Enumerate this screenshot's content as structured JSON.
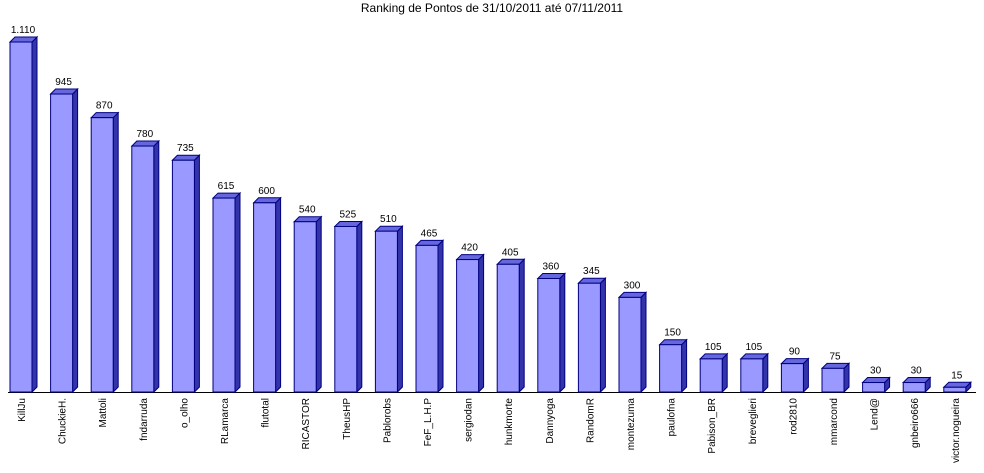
{
  "chart_data": {
    "type": "bar3d",
    "title": "Ranking de Pontos de 31/10/2011 até 07/11/2011",
    "categories": [
      "KillJu",
      "ChuckieH.",
      "Mattoli",
      "fndarruda",
      "o_olho",
      "RLamarca",
      "flutotal",
      "RICASTOR",
      "TheusHP",
      "Pablorobs",
      "FeF_L.H.P",
      "sergiodan",
      "hunkmorte",
      "Dannyoga",
      "RandomR",
      "montezuma",
      "paulofna",
      "Pabison_BR",
      "breveglieri",
      "rod2810",
      "mmarcond",
      "Lend@",
      "gnbeiro666",
      "victor.nogueira"
    ],
    "values": [
      1110,
      945,
      870,
      780,
      735,
      615,
      600,
      540,
      525,
      510,
      465,
      420,
      405,
      360,
      345,
      300,
      150,
      105,
      105,
      90,
      75,
      30,
      30,
      15
    ],
    "value_labels": [
      "1.110",
      "945",
      "870",
      "780",
      "735",
      "615",
      "600",
      "540",
      "525",
      "510",
      "465",
      "420",
      "405",
      "360",
      "345",
      "300",
      "150",
      "105",
      "105",
      "90",
      "75",
      "30",
      "30",
      "15"
    ],
    "color": "#9999ff"
  }
}
